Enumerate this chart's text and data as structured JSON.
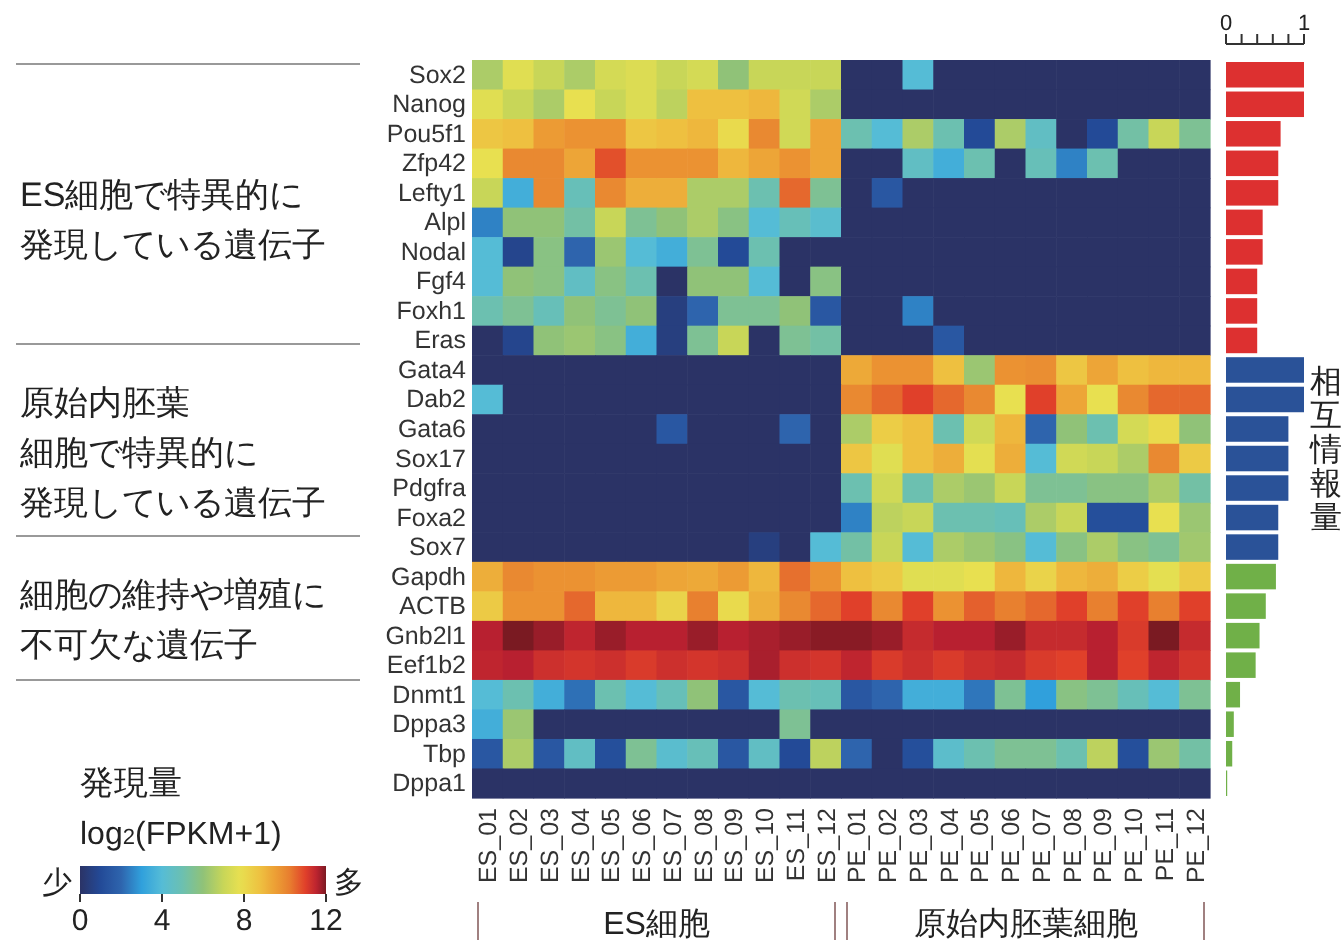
{
  "chart_data": [
    {
      "type": "heatmap",
      "categories": [
        "ES_01",
        "ES_02",
        "ES_03",
        "ES_04",
        "ES_05",
        "ES_06",
        "ES_07",
        "ES_08",
        "ES_09",
        "ES_10",
        "ES_11",
        "ES_12",
        "PE_01",
        "PE_02",
        "PE_03",
        "PE_04",
        "PE_05",
        "PE_06",
        "PE_07",
        "PE_08",
        "PE_09",
        "PE_10",
        "PE_11",
        "PE_12"
      ],
      "y_categories": [
        "Sox2",
        "Nanog",
        "Pou5f1",
        "Zfp42",
        "Lefty1",
        "Alpl",
        "Nodal",
        "Fgf4",
        "Foxh1",
        "Eras",
        "Gata4",
        "Dab2",
        "Gata6",
        "Sox17",
        "Pdgfra",
        "Foxa2",
        "Sox7",
        "Gapdh",
        "ACTB",
        "Gnb2l1",
        "Eef1b2",
        "Dnmt1",
        "Dppa3",
        "Tbp",
        "Dppa1"
      ],
      "cells": [
        [
          6.5,
          7.6,
          7,
          6.5,
          7.3,
          7.5,
          7,
          7.3,
          6,
          7,
          7,
          7,
          0,
          0,
          4,
          0,
          0,
          0,
          0,
          0,
          0,
          0,
          0,
          0
        ],
        [
          7.6,
          7,
          6.5,
          7.8,
          7,
          7.5,
          6.8,
          8.8,
          8.8,
          9,
          7.2,
          6.5,
          0,
          0,
          0,
          0,
          0,
          0,
          0,
          0,
          0,
          0,
          0,
          0
        ],
        [
          8.6,
          8.8,
          9.6,
          9.8,
          9.8,
          8.6,
          8.8,
          9,
          8,
          10,
          7.2,
          9.4,
          5,
          4,
          6.5,
          5,
          1,
          6.5,
          4.5,
          0,
          1,
          5.2,
          7,
          5.5
        ],
        [
          7.8,
          10,
          10,
          9.4,
          10.8,
          9.8,
          9.8,
          9.8,
          9,
          9.4,
          9.8,
          9.4,
          0,
          0,
          4.5,
          3.5,
          5,
          0,
          4.8,
          2.5,
          5,
          0,
          0,
          0
        ],
        [
          7,
          3.5,
          10,
          4.8,
          10,
          9.2,
          9.2,
          6.5,
          6.5,
          5,
          10.5,
          5.5,
          0,
          1.5,
          0,
          0,
          0,
          0,
          0,
          0,
          0,
          0,
          0,
          0
        ],
        [
          2.5,
          6,
          6,
          5.2,
          7,
          5.5,
          6,
          6.5,
          5.8,
          4,
          4.8,
          4.2,
          0,
          0,
          0,
          0,
          0,
          0,
          0,
          0,
          0,
          0,
          0,
          0
        ],
        [
          4,
          0.8,
          5.8,
          2,
          6.2,
          4,
          3.5,
          5.5,
          1,
          5,
          0,
          0,
          0,
          0,
          0,
          0,
          0,
          0,
          0,
          0,
          0,
          0,
          0,
          0
        ],
        [
          4,
          6,
          5.8,
          4.5,
          5.8,
          5,
          0,
          6,
          6,
          4,
          0,
          5.8,
          0,
          0,
          0,
          0,
          0,
          0,
          0,
          0,
          0,
          0,
          0,
          0
        ],
        [
          5,
          5.5,
          4.8,
          6,
          5.5,
          6,
          0.5,
          2,
          5.5,
          5.5,
          6,
          1.5,
          0,
          0,
          2.5,
          0,
          0,
          0,
          0,
          0,
          0,
          0,
          0,
          0
        ],
        [
          0,
          0.8,
          6,
          6.2,
          5.8,
          3.5,
          0.5,
          5.5,
          7,
          0,
          5.5,
          5.2,
          0,
          0,
          0,
          1.5,
          0,
          0,
          0,
          0,
          0,
          0,
          0,
          0
        ],
        [
          0,
          0,
          0,
          0,
          0,
          0,
          0,
          0,
          0,
          0,
          0,
          0,
          9.3,
          9.8,
          9.8,
          8.8,
          6.2,
          9.8,
          9.9,
          8.6,
          9.4,
          8.8,
          9,
          9
        ],
        [
          4,
          0,
          0,
          0,
          0,
          0,
          0,
          0,
          0,
          0,
          0,
          0,
          10,
          10.5,
          11,
          10.5,
          10,
          7.8,
          11,
          9.4,
          7.8,
          10,
          10.5,
          10.5
        ],
        [
          0,
          0,
          0,
          0,
          0,
          0,
          1.5,
          0,
          0,
          0,
          2,
          0,
          6.5,
          8.4,
          8.8,
          5,
          7.2,
          9,
          2,
          6,
          5,
          7.3,
          8,
          6
        ],
        [
          0,
          0,
          0,
          0,
          0,
          0,
          0,
          0,
          0,
          0,
          0,
          0,
          8.6,
          7.6,
          8.8,
          9.2,
          7.7,
          9.2,
          4,
          7.2,
          7,
          6.5,
          10,
          8.5
        ],
        [
          0,
          0,
          0,
          0,
          0,
          0,
          0,
          0,
          0,
          0,
          0,
          0,
          5,
          7.2,
          5,
          6.5,
          6.2,
          7,
          5.5,
          5.5,
          5.8,
          5.8,
          6.5,
          5.2
        ],
        [
          0,
          0,
          0,
          0,
          0,
          0,
          0,
          0,
          0,
          0,
          0,
          0,
          2.5,
          6.8,
          7,
          5,
          5,
          4.8,
          6.5,
          7,
          1.2,
          1.2,
          7.8,
          6.2
        ],
        [
          0,
          0,
          0,
          0,
          0,
          0,
          0,
          0,
          0,
          0.5,
          0,
          4,
          5.2,
          7,
          4,
          6.5,
          6.2,
          5.8,
          4,
          5.8,
          6.5,
          5.8,
          5.5,
          6.3
        ],
        [
          9.2,
          10,
          9.8,
          9.8,
          9.6,
          9.6,
          9.4,
          9.3,
          9.6,
          9,
          10.4,
          9.8,
          8.8,
          8.5,
          7.6,
          7.6,
          7.8,
          9,
          8.2,
          9,
          9.2,
          8.4,
          7.7,
          8.5
        ],
        [
          8.5,
          9.8,
          9.8,
          10.5,
          9,
          9,
          8.2,
          10.2,
          8,
          9.2,
          10,
          10.5,
          11,
          10,
          11,
          9.8,
          10.6,
          10.2,
          10.5,
          11,
          10.2,
          11,
          10.2,
          11
        ],
        [
          11.6,
          12,
          11.8,
          11.5,
          11.8,
          11.6,
          11.6,
          11.8,
          11.6,
          11.7,
          11.8,
          11.9,
          11.9,
          11.8,
          11.4,
          11.6,
          11.6,
          11.8,
          11.4,
          11.4,
          11.6,
          11.1,
          12,
          11.4
        ],
        [
          11.5,
          11.6,
          11.3,
          11.2,
          11.3,
          11.1,
          11.3,
          11.2,
          11.3,
          11.7,
          11.3,
          11.2,
          11.5,
          11.1,
          11.3,
          11.1,
          11.3,
          11.4,
          11.1,
          11,
          11.6,
          11,
          11.5,
          11.2
        ],
        [
          4,
          5,
          3.5,
          2.2,
          5,
          4,
          4.8,
          6,
          1.5,
          4,
          5,
          4.8,
          1.5,
          2,
          3.5,
          3.5,
          2.3,
          5.5,
          3,
          5.8,
          5.5,
          4.8,
          4,
          5.5
        ],
        [
          3.5,
          6.2,
          0,
          0,
          0,
          0,
          0,
          0,
          0,
          0,
          5.5,
          0,
          0,
          0,
          0,
          0,
          0,
          0,
          0,
          0,
          0,
          0,
          0,
          0
        ],
        [
          1.5,
          6.5,
          1.5,
          4.5,
          1.2,
          5.5,
          4.2,
          4.8,
          1.5,
          4.5,
          1,
          6.8,
          2,
          0,
          1.2,
          4.3,
          5,
          5.5,
          5.5,
          5,
          6.8,
          1.2,
          6.2,
          5.2
        ],
        [
          0,
          0,
          0,
          0,
          0,
          0,
          0,
          0,
          0,
          0,
          0,
          0,
          0,
          0,
          0,
          0,
          0,
          0,
          0,
          0,
          0,
          0,
          0,
          0
        ]
      ],
      "clim": [
        0,
        12
      ],
      "cticks": [
        0,
        4,
        8,
        12
      ],
      "clabel": "log$_{2}$(FPKM+1)",
      "legend_title": "発現量",
      "annotations": [
        "ES細胞で特異的に",
        "発現している遺伝子",
        "原始内胚葉",
        "細胞で特異的に",
        "発現している遺伝子",
        "細胞の維持や増殖に",
        "不可欠な遺伝子",
        "ES細胞",
        "原始内胚葉細胞",
        "少",
        "多"
      ]
    },
    {
      "type": "bar",
      "orientation": "horizontal",
      "xlabel": "相互情報量",
      "categories": [
        null,
        null,
        null,
        null,
        null,
        null,
        null,
        null,
        null,
        null,
        null,
        null,
        null,
        null,
        null,
        null,
        null,
        null,
        null,
        null,
        null,
        null,
        null,
        null,
        null
      ],
      "values": [
        1,
        1,
        0.7,
        0.67,
        0.67,
        0.47,
        0.47,
        0.4,
        0.4,
        0.4,
        1,
        1,
        0.8,
        0.8,
        0.8,
        0.67,
        0.67,
        0.64,
        0.51,
        0.43,
        0.38,
        0.18,
        0.1,
        0.08,
        0.01
      ],
      "colors": [
        "#dd3030",
        "#dd3030",
        "#dd3030",
        "#dd3030",
        "#dd3030",
        "#dd3030",
        "#dd3030",
        "#dd3030",
        "#dd3030",
        "#dd3030",
        "#2a5298",
        "#2a5298",
        "#2a5298",
        "#2a5298",
        "#2a5298",
        "#2a5298",
        "#2a5298",
        "#70b048",
        "#70b048",
        "#70b048",
        "#70b048",
        "#70b048",
        "#70b048",
        "#70b048",
        "#70b048"
      ],
      "xlim": [
        0,
        1
      ],
      "xticks": [
        0,
        {
          "value": 0.2,
          "label": null
        },
        {
          "value": 0.4,
          "label": null
        },
        {
          "value": 0.6,
          "label": null
        },
        {
          "value": 0.8,
          "label": null
        },
        1
      ]
    }
  ]
}
